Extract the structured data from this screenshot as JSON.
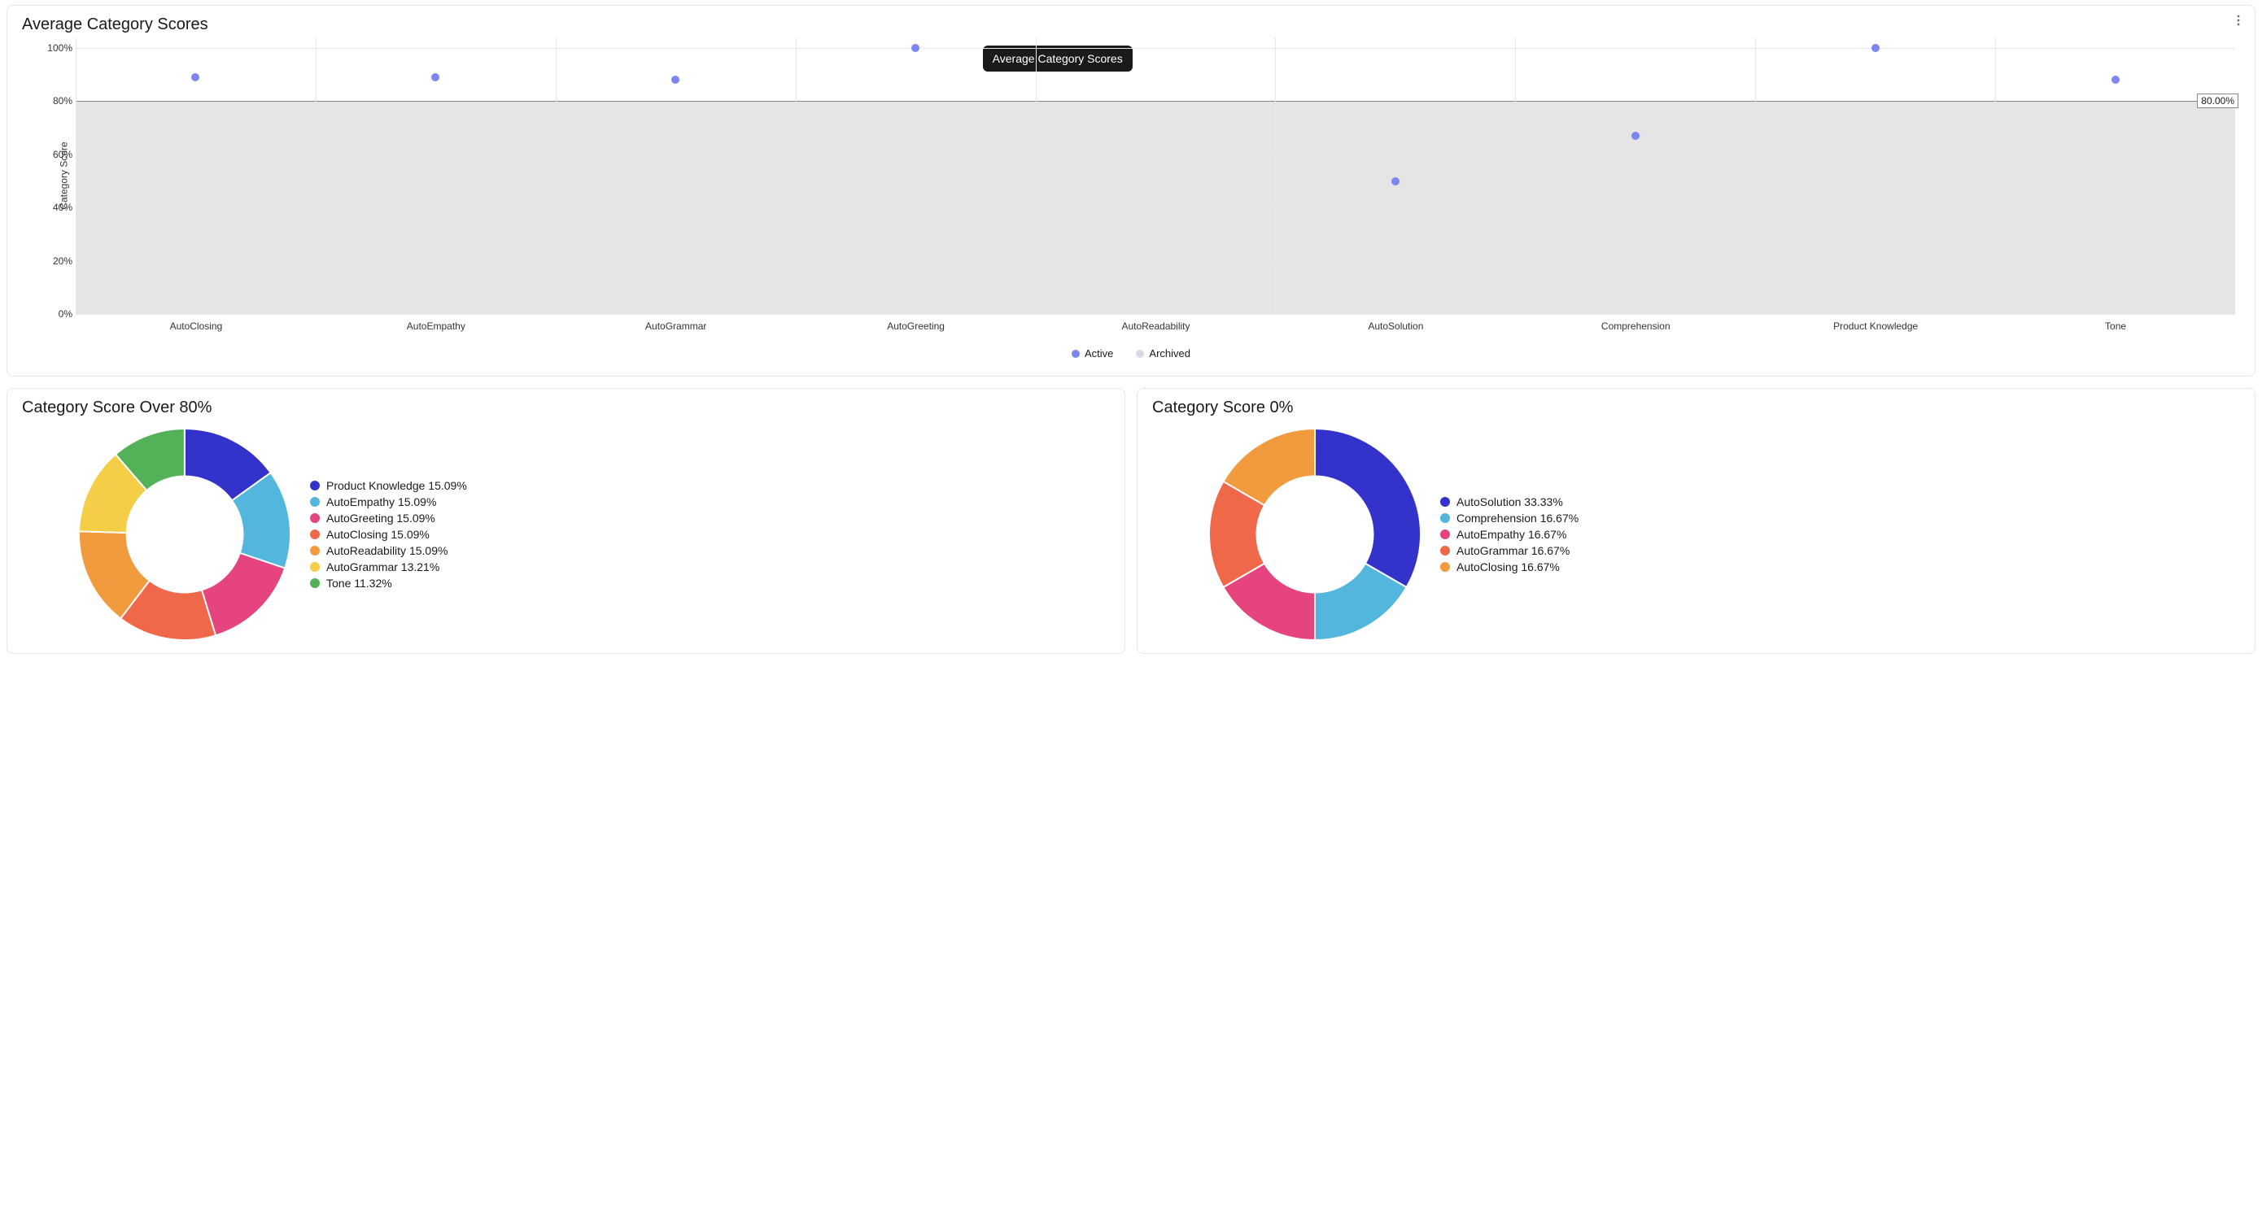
{
  "scatter_card": {
    "title": "Average Category Scores",
    "tooltip": "Average Category Scores",
    "y_axis_title": "Category Score",
    "y_ticks": [
      0,
      20,
      40,
      60,
      80,
      100
    ],
    "y_tick_suffix": "%",
    "ylim": [
      0,
      104
    ],
    "threshold": 80,
    "threshold_label": "80.00%",
    "threshold_band_color": "#e5e5e5",
    "grid_color": "#e5e7eb",
    "marker_color": "#7c86f0",
    "marker_muted_color": "#d9d9e3",
    "marker_size": 10,
    "categories": [
      {
        "name": "AutoClosing",
        "value": 89
      },
      {
        "name": "AutoEmpathy",
        "value": 89
      },
      {
        "name": "AutoGrammar",
        "value": 88
      },
      {
        "name": "AutoGreeting",
        "value": 100
      },
      {
        "name": "AutoReadability",
        "value": null
      },
      {
        "name": "AutoSolution",
        "value": 50
      },
      {
        "name": "Comprehension",
        "value": 67
      },
      {
        "name": "Product Knowledge",
        "value": 100
      },
      {
        "name": "Tone",
        "value": 88
      }
    ],
    "legend": [
      {
        "label": "Active",
        "color": "#7c86f0"
      },
      {
        "label": "Archived",
        "color": "#d9d9e3"
      }
    ]
  },
  "donut_over80": {
    "title": "Category Score Over 80%",
    "inner_radius_pct": 55,
    "colors": [
      "#3333cc",
      "#52b6dd",
      "#e6447e",
      "#f0684a",
      "#f29b3e",
      "#f4ce47",
      "#53b258"
    ],
    "slices": [
      {
        "label": "Product Knowledge",
        "pct": 15.09
      },
      {
        "label": "AutoEmpathy",
        "pct": 15.09
      },
      {
        "label": "AutoGreeting",
        "pct": 15.09
      },
      {
        "label": "AutoClosing",
        "pct": 15.09
      },
      {
        "label": "AutoReadability",
        "pct": 15.09
      },
      {
        "label": "AutoGrammar",
        "pct": 13.21
      },
      {
        "label": "Tone",
        "pct": 11.32
      }
    ]
  },
  "donut_zero": {
    "title": "Category Score 0%",
    "inner_radius_pct": 55,
    "colors": [
      "#3333cc",
      "#52b6dd",
      "#e6447e",
      "#f0684a",
      "#f29b3e"
    ],
    "slices": [
      {
        "label": "AutoSolution",
        "pct": 33.33
      },
      {
        "label": "Comprehension",
        "pct": 16.67
      },
      {
        "label": "AutoEmpathy",
        "pct": 16.67
      },
      {
        "label": "AutoGrammar",
        "pct": 16.67
      },
      {
        "label": "AutoClosing",
        "pct": 16.67
      }
    ]
  }
}
